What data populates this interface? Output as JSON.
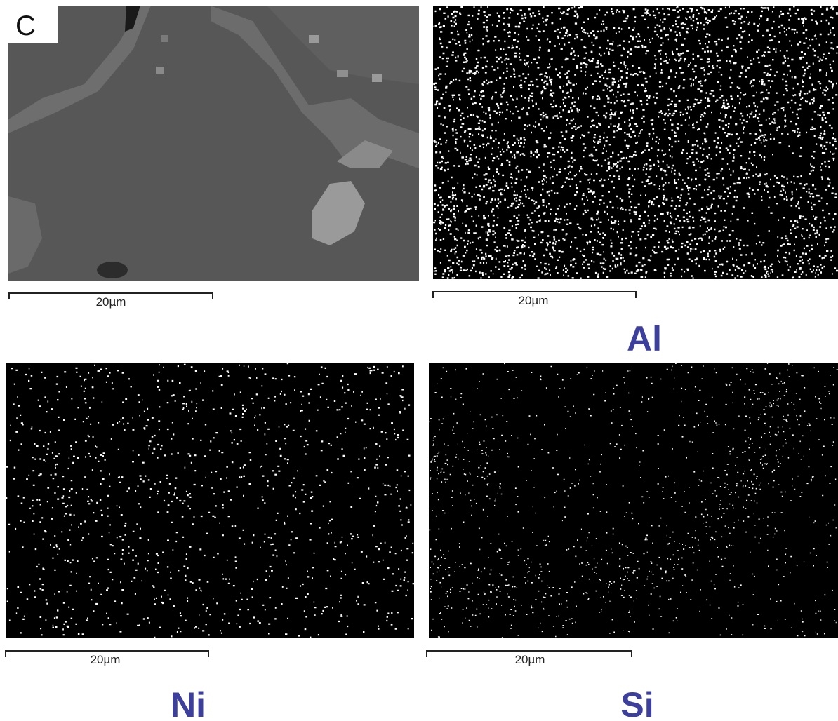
{
  "panel_label": "C",
  "panels": [
    {
      "scale_label": "20µm"
    },
    {
      "scale_label": "20µm",
      "element": "Al"
    },
    {
      "scale_label": "20µm",
      "element": "Ni"
    },
    {
      "scale_label": "20µm",
      "element": "Si"
    }
  ]
}
